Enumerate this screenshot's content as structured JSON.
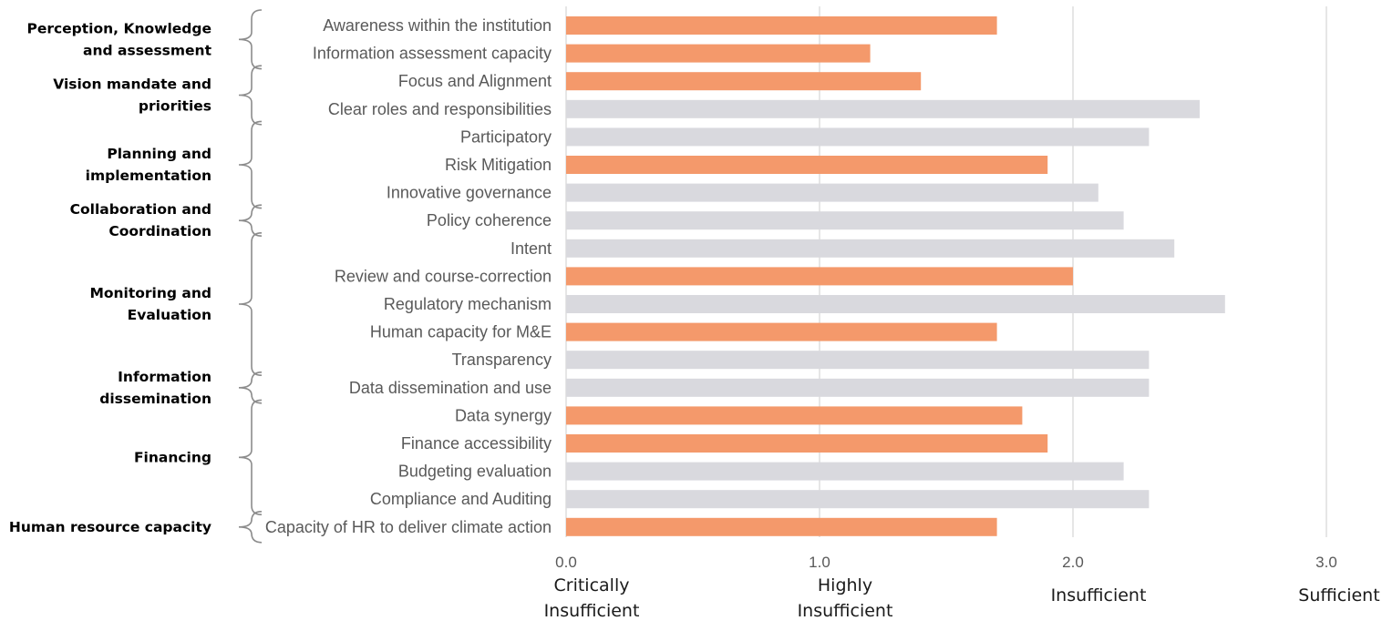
{
  "chart_data": {
    "type": "bar",
    "orientation": "horizontal",
    "title": "",
    "xlabel": "",
    "ylabel": "",
    "xlim": [
      0,
      3
    ],
    "grid": true,
    "legend": "none",
    "colors": {
      "highlight": "#f4996b",
      "neutral": "#d9d9de",
      "grid": "#d9d9d9",
      "label": "#595959"
    },
    "ticks": [
      {
        "value": 0,
        "label": "0.0",
        "rating": [
          "Critically",
          "Insufficient"
        ]
      },
      {
        "value": 1,
        "label": "1.0",
        "rating": [
          "Highly",
          "Insufficient"
        ]
      },
      {
        "value": 2,
        "label": "2.0",
        "rating": [
          "Insufficient"
        ]
      },
      {
        "value": 3,
        "label": "3.0",
        "rating": [
          "Sufficient"
        ]
      }
    ],
    "categories": [
      "Awareness within the institution",
      "Information assessment capacity",
      "Focus and Alignment",
      "Clear roles and responsibilities",
      "Participatory",
      "Risk Mitigation",
      "Innovative governance",
      "Policy coherence",
      "Intent",
      "Review and course-correction",
      "Regulatory mechanism",
      "Human capacity for M&E",
      "Transparency",
      "Data dissemination and use",
      "Data synergy",
      "Finance accessibility",
      "Budgeting evaluation",
      "Compliance and Auditing",
      "Capacity of HR to deliver climate action"
    ],
    "values": [
      1.7,
      1.2,
      1.4,
      2.5,
      2.3,
      1.9,
      2.1,
      2.2,
      2.4,
      2.0,
      2.6,
      1.7,
      2.3,
      2.3,
      1.8,
      1.9,
      2.2,
      2.3,
      1.7
    ],
    "highlighted": [
      true,
      true,
      true,
      false,
      false,
      true,
      false,
      false,
      false,
      true,
      false,
      true,
      false,
      false,
      true,
      true,
      false,
      false,
      true
    ],
    "groups": [
      {
        "label": [
          "Perception, Knowledge",
          "and assessment"
        ],
        "start": 0,
        "end": 1
      },
      {
        "label": [
          "Vision mandate and",
          "priorities"
        ],
        "start": 2,
        "end": 3
      },
      {
        "label": [
          "Planning and",
          "implementation"
        ],
        "start": 4,
        "end": 6
      },
      {
        "label": [
          "Collaboration and",
          "Coordination"
        ],
        "start": 7,
        "end": 7
      },
      {
        "label": [
          "Monitoring and",
          "Evaluation"
        ],
        "start": 8,
        "end": 12
      },
      {
        "label": [
          "Information",
          "dissemination"
        ],
        "start": 13,
        "end": 13
      },
      {
        "label": [
          "Financing"
        ],
        "start": 14,
        "end": 17
      },
      {
        "label": [
          "Human resource capacity"
        ],
        "start": 18,
        "end": 18
      }
    ]
  }
}
